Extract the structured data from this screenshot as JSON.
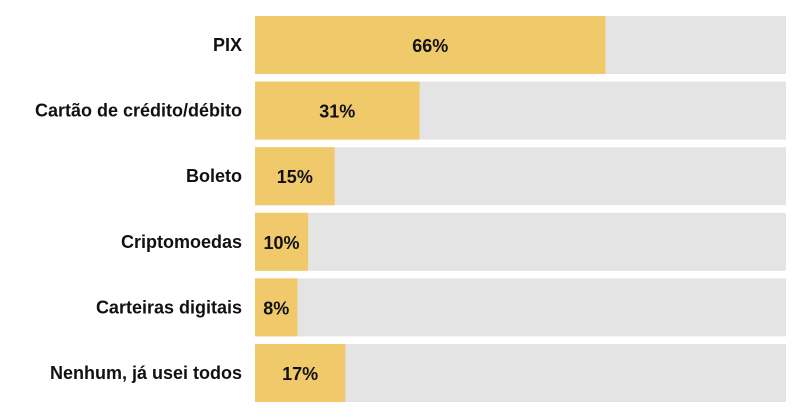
{
  "chart_data": {
    "type": "bar",
    "orientation": "horizontal",
    "categories": [
      "PIX",
      "Cartão de crédito/débito",
      "Boleto",
      "Criptomoedas",
      "Carteiras digitais",
      "Nenhum, já usei todos"
    ],
    "values": [
      66,
      31,
      15,
      10,
      8,
      17
    ],
    "value_labels": [
      "66%",
      "31%",
      "15%",
      "10%",
      "8%",
      "17%"
    ],
    "xlim": [
      0,
      100
    ],
    "grid": false,
    "legend": "none",
    "colors": {
      "bar": "#F0C96B",
      "track": "#E4E4E4",
      "text": "#111111"
    }
  }
}
